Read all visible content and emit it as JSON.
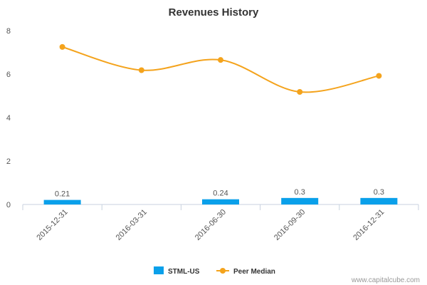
{
  "chart_data": {
    "type": "bar",
    "title": "Revenues History",
    "categories": [
      "2015-12-31",
      "2016-03-31",
      "2016-06-30",
      "2016-09-30",
      "2016-12-31"
    ],
    "series": [
      {
        "name": "STML-US",
        "type": "bar",
        "color": "#0aa0ea",
        "values": [
          0.21,
          null,
          0.24,
          0.3,
          0.3
        ],
        "labels": [
          "0.21",
          "",
          "0.24",
          "0.3",
          "0.3"
        ]
      },
      {
        "name": "Peer Median",
        "type": "line",
        "color": "#f4a31c",
        "values": [
          7.25,
          6.18,
          6.65,
          5.18,
          5.92
        ]
      }
    ],
    "ylim": [
      0,
      8
    ],
    "yticks": [
      "0",
      "2",
      "4",
      "6",
      "8"
    ],
    "grid": false,
    "legend": "bottom"
  },
  "watermark": "www.capitalcube.com"
}
